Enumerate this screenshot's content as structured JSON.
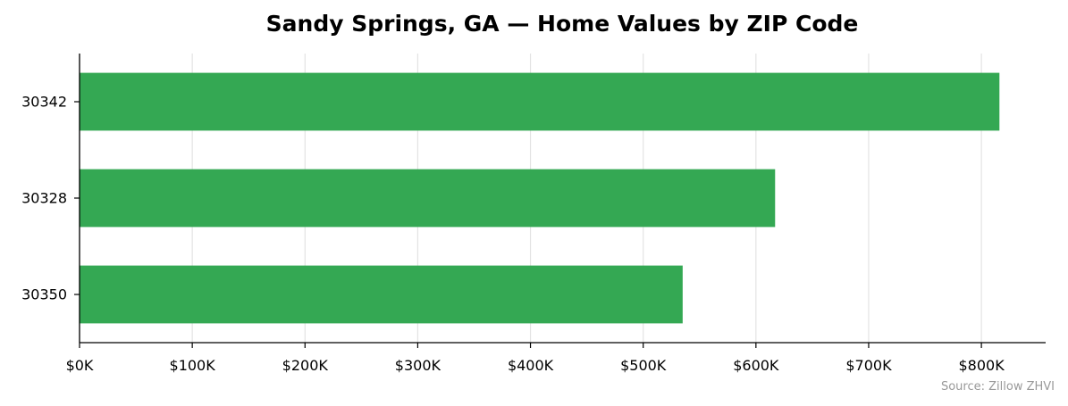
{
  "chart_data": {
    "type": "bar",
    "orientation": "horizontal",
    "title": "Sandy Springs, GA — Home Values by ZIP Code",
    "xlabel": "",
    "ylabel": "",
    "categories": [
      "30342",
      "30328",
      "30350"
    ],
    "values": [
      816000,
      617000,
      535000
    ],
    "xlim": [
      0,
      857000
    ],
    "xticks": [
      0,
      100000,
      200000,
      300000,
      400000,
      500000,
      600000,
      700000,
      800000
    ],
    "xtick_labels": [
      "$0K",
      "$100K",
      "$200K",
      "$300K",
      "$400K",
      "$500K",
      "$600K",
      "$700K",
      "$800K"
    ],
    "grid": "x",
    "bar_color": "#34a853",
    "source": "Source: Zillow ZHVI"
  }
}
